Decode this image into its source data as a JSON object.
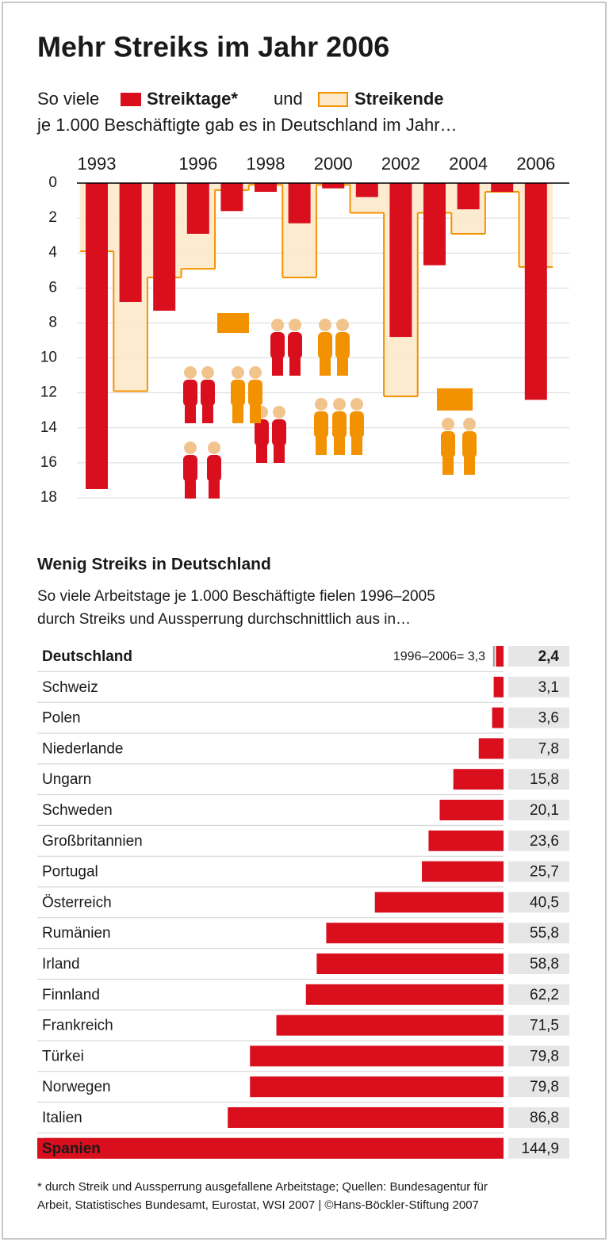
{
  "chart_data": [
    {
      "type": "bar",
      "title": "Mehr Streiks im Jahr 2006",
      "subtitle_start": "So viele",
      "subtitle_join": "und",
      "subtitle_end": "je 1.000 Beschäftigte gab es in Deutschland im Jahr…",
      "categories": [
        "1993",
        null,
        null,
        "1996",
        null,
        "1998",
        null,
        "2000",
        null,
        "2002",
        null,
        "2004",
        null,
        "2006"
      ],
      "series": [
        {
          "name": "Streiktage*",
          "color": "#d90f1d",
          "values": [
            17.5,
            6.8,
            7.3,
            2.9,
            1.6,
            0.5,
            2.3,
            0.3,
            0.8,
            8.8,
            4.7,
            1.5,
            0.5,
            12.4
          ]
        },
        {
          "name": "Streikende",
          "color": "#f39200",
          "fill": "#fde8c8",
          "style": "step",
          "values": [
            3.9,
            11.9,
            5.4,
            4.9,
            0.4,
            0.1,
            5.4,
            0.1,
            1.7,
            12.2,
            1.7,
            2.9,
            0.5,
            4.8
          ]
        }
      ],
      "ylim": [
        0,
        18
      ],
      "yticks": [
        0,
        2,
        4,
        6,
        8,
        10,
        12,
        14,
        16,
        18
      ],
      "y_inverted": true,
      "grid": true
    },
    {
      "type": "hbar",
      "title": "Wenig Streiks in Deutschland",
      "subtitle": [
        "So viele Arbeitstage je 1.000 Beschäftigte fielen 1996–2005",
        "durch Streiks und Aussperrung durchschnittlich aus in…"
      ],
      "categories": [
        "Deutschland",
        "Schweiz",
        "Polen",
        "Niederlande",
        "Ungarn",
        "Schweden",
        "Großbritannien",
        "Portugal",
        "Österreich",
        "Rumänien",
        "Irland",
        "Finnland",
        "Frankreich",
        "Türkei",
        "Norwegen",
        "Italien",
        "Spanien"
      ],
      "values": [
        2.4,
        3.1,
        3.6,
        7.8,
        15.8,
        20.1,
        23.6,
        25.7,
        40.5,
        55.8,
        58.8,
        62.2,
        71.5,
        79.8,
        79.8,
        86.8,
        144.9
      ],
      "value_labels": [
        "2,4",
        "3,1",
        "3,6",
        "7,8",
        "15,8",
        "20,1",
        "23,6",
        "25,7",
        "40,5",
        "55,8",
        "58,8",
        "62,2",
        "71,5",
        "79,8",
        "79,8",
        "86,8",
        "144,9"
      ],
      "reference": {
        "value": 3.3,
        "label": "1996–2006= 3,3"
      },
      "color": "#d90f1d",
      "xlim": [
        0,
        146
      ]
    }
  ],
  "footnote": [
    "* durch Streik und Aussperrung ausgefallene Arbeitstage; Quellen: Bundesagentur für",
    "Arbeit, Statistisches Bundesamt, Eurostat, WSI 2007 | ©Hans-Böckler-Stiftung 2007"
  ]
}
